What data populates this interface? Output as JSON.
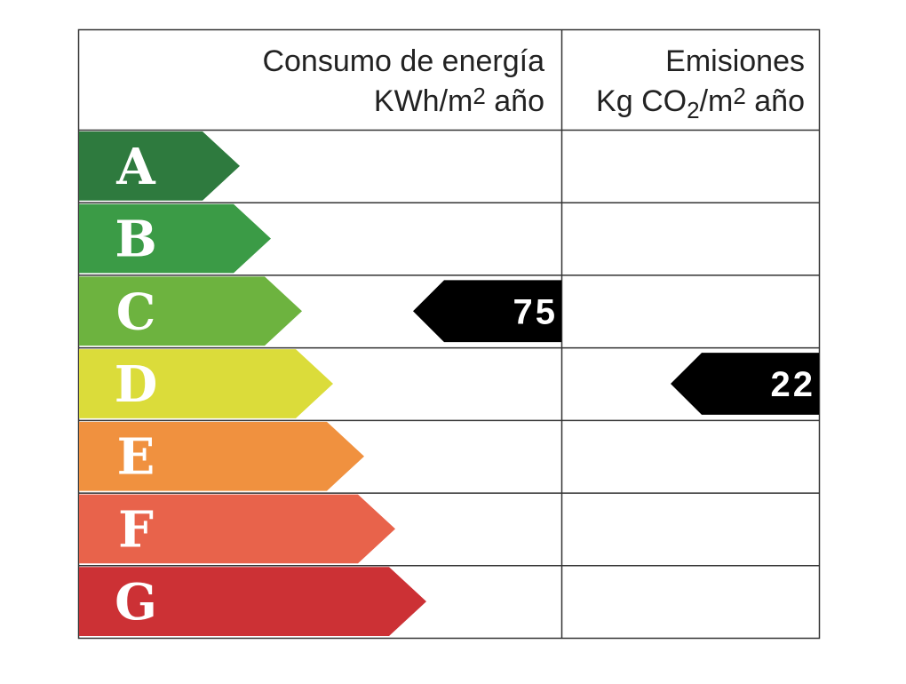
{
  "header": {
    "energy": {
      "line1": "Consumo de energía",
      "line2": [
        "KWh/m",
        "2",
        " año"
      ]
    },
    "emissions": {
      "line1": "Emisiones",
      "line2": [
        "Kg CO",
        "2",
        "/m",
        "2",
        " año"
      ]
    }
  },
  "rows": [
    {
      "letter": "A",
      "color": "#2e7a3e"
    },
    {
      "letter": "B",
      "color": "#3b9b46"
    },
    {
      "letter": "C",
      "color": "#6db33f",
      "energy": 75
    },
    {
      "letter": "D",
      "color": "#dbdc3a",
      "emissions": 22
    },
    {
      "letter": "E",
      "color": "#f0913f"
    },
    {
      "letter": "F",
      "color": "#e8634b"
    },
    {
      "letter": "G",
      "color": "#cc3135"
    }
  ]
}
